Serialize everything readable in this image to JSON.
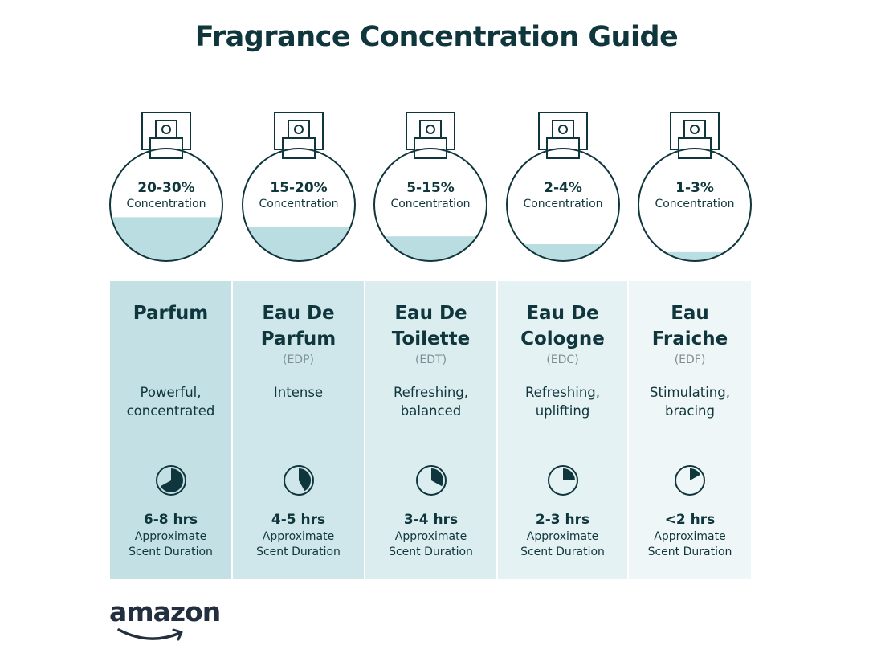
{
  "title": "Fragrance Concentration Guide",
  "colors": {
    "text_dark": "#0f363c",
    "liquid": "#b9dde0",
    "abbr_gray": "#7d8f92",
    "column_backgrounds": [
      "#c3e1e4",
      "#cfe7ea",
      "#dbedef",
      "#e5f2f4",
      "#eff6f7"
    ]
  },
  "types": [
    {
      "concentration": "20-30%",
      "concentration_label": "Concentration",
      "fill_level": 0.39,
      "name_lines": [
        "Parfum",
        ""
      ],
      "abbreviation": "",
      "description_lines": [
        "Powerful,",
        "concentrated"
      ],
      "clock_icon": "clock-pie-icon",
      "clock_fill_fraction": 0.67,
      "duration": "6-8 hrs",
      "duration_label_lines": [
        "Approximate",
        "Scent Duration"
      ]
    },
    {
      "concentration": "15-20%",
      "concentration_label": "Concentration",
      "fill_level": 0.3,
      "name_lines": [
        "Eau De",
        "Parfum"
      ],
      "abbreviation": "(EDP)",
      "description_lines": [
        "Intense",
        ""
      ],
      "clock_icon": "clock-pie-icon",
      "clock_fill_fraction": 0.42,
      "duration": "4-5 hrs",
      "duration_label_lines": [
        "Approximate",
        "Scent Duration"
      ]
    },
    {
      "concentration": "5-15%",
      "concentration_label": "Concentration",
      "fill_level": 0.22,
      "name_lines": [
        "Eau De",
        "Toilette"
      ],
      "abbreviation": "(EDT)",
      "description_lines": [
        "Refreshing,",
        "balanced"
      ],
      "clock_icon": "clock-pie-icon",
      "clock_fill_fraction": 0.33,
      "duration": "3-4 hrs",
      "duration_label_lines": [
        "Approximate",
        "Scent Duration"
      ]
    },
    {
      "concentration": "2-4%",
      "concentration_label": "Concentration",
      "fill_level": 0.15,
      "name_lines": [
        "Eau De",
        "Cologne"
      ],
      "abbreviation": "(EDC)",
      "description_lines": [
        "Refreshing,",
        "uplifting"
      ],
      "clock_icon": "clock-pie-icon",
      "clock_fill_fraction": 0.25,
      "duration": "2-3 hrs",
      "duration_label_lines": [
        "Approximate",
        "Scent Duration"
      ]
    },
    {
      "concentration": "1-3%",
      "concentration_label": "Concentration",
      "fill_level": 0.08,
      "name_lines": [
        "Eau",
        "Fraiche"
      ],
      "abbreviation": "(EDF)",
      "description_lines": [
        "Stimulating,",
        "bracing"
      ],
      "clock_icon": "clock-pie-icon",
      "clock_fill_fraction": 0.17,
      "duration": "<2 hrs",
      "duration_label_lines": [
        "Approximate",
        "Scent Duration"
      ]
    }
  ],
  "logo": {
    "text": "amazon"
  }
}
